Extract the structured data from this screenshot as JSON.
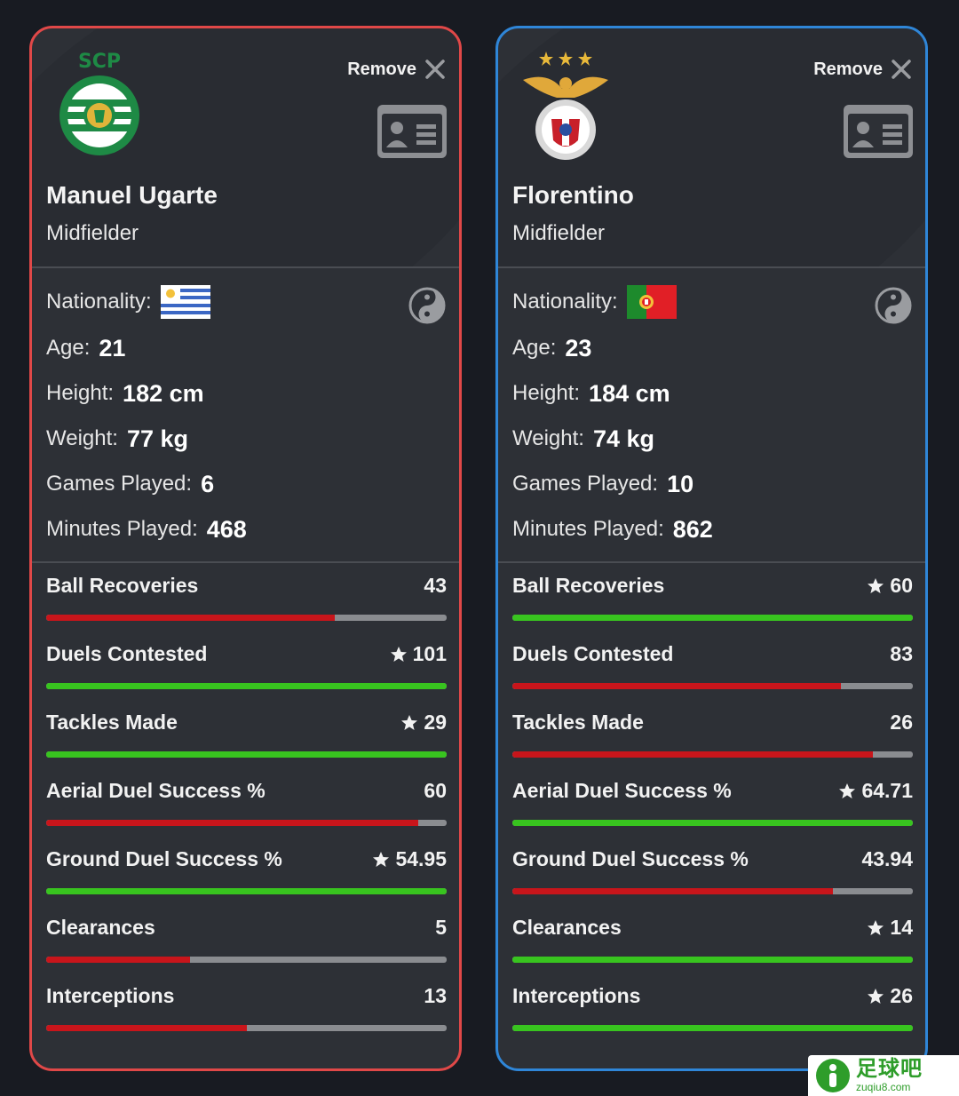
{
  "players": [
    {
      "id": "left",
      "name": "Manuel Ugarte",
      "position": "Midfielder",
      "club_icon": "sporting-cp-crest-icon",
      "club_crest_text": "SCP",
      "remove_label": "Remove",
      "border_color": "#e04848",
      "nationality_label": "Nationality:",
      "flag_icon": "uruguay-flag-icon",
      "age_label": "Age:",
      "age": "21",
      "height_label": "Height:",
      "height": "182 cm",
      "weight_label": "Weight:",
      "weight": "77 kg",
      "games_label": "Games Played:",
      "games": "6",
      "minutes_label": "Minutes Played:",
      "minutes": "468",
      "stats": [
        {
          "label": "Ball Recoveries",
          "value": "43",
          "star": false,
          "fill": 0.72,
          "color": "red"
        },
        {
          "label": "Duels Contested",
          "value": "101",
          "star": true,
          "fill": 1.0,
          "color": "green"
        },
        {
          "label": "Tackles Made",
          "value": "29",
          "star": true,
          "fill": 1.0,
          "color": "green"
        },
        {
          "label": "Aerial Duel Success %",
          "value": "60",
          "star": false,
          "fill": 0.93,
          "color": "red"
        },
        {
          "label": "Ground Duel Success %",
          "value": "54.95",
          "star": true,
          "fill": 1.0,
          "color": "green"
        },
        {
          "label": "Clearances",
          "value": "5",
          "star": false,
          "fill": 0.36,
          "color": "red"
        },
        {
          "label": "Interceptions",
          "value": "13",
          "star": false,
          "fill": 0.5,
          "color": "red"
        }
      ]
    },
    {
      "id": "right",
      "name": "Florentino",
      "position": "Midfielder",
      "club_icon": "benfica-crest-icon",
      "remove_label": "Remove",
      "border_color": "#2f86d8",
      "nationality_label": "Nationality:",
      "flag_icon": "portugal-flag-icon",
      "age_label": "Age:",
      "age": "23",
      "height_label": "Height:",
      "height": "184 cm",
      "weight_label": "Weight:",
      "weight": "74 kg",
      "games_label": "Games Played:",
      "games": "10",
      "minutes_label": "Minutes Played:",
      "minutes": "862",
      "stats": [
        {
          "label": "Ball Recoveries",
          "value": "60",
          "star": true,
          "fill": 1.0,
          "color": "green"
        },
        {
          "label": "Duels Contested",
          "value": "83",
          "star": false,
          "fill": 0.82,
          "color": "red"
        },
        {
          "label": "Tackles Made",
          "value": "26",
          "star": false,
          "fill": 0.9,
          "color": "red"
        },
        {
          "label": "Aerial Duel Success %",
          "value": "64.71",
          "star": true,
          "fill": 1.0,
          "color": "green"
        },
        {
          "label": "Ground Duel Success %",
          "value": "43.94",
          "star": false,
          "fill": 0.8,
          "color": "red"
        },
        {
          "label": "Clearances",
          "value": "14",
          "star": true,
          "fill": 1.0,
          "color": "green"
        },
        {
          "label": "Interceptions",
          "value": "26",
          "star": true,
          "fill": 1.0,
          "color": "green"
        }
      ]
    }
  ],
  "watermark": {
    "cn": "足球吧",
    "en": "zuqiu8.com",
    "icon": "zuqiu8-logo-icon"
  }
}
